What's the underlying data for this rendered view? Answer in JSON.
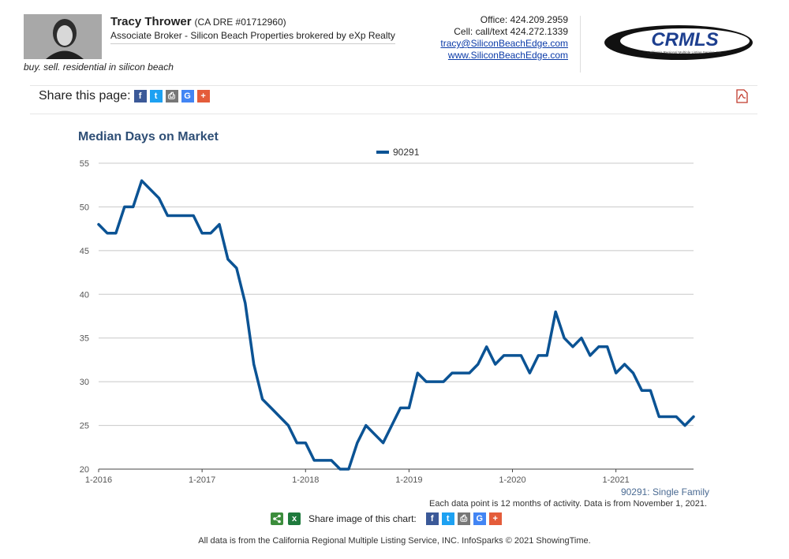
{
  "agent": {
    "name": "Tracy Thrower",
    "dre": "(CA DRE #01712960)",
    "title": "Associate Broker - Silicon Beach Properties brokered by eXp Realty",
    "tagline": "buy. sell. residential in silicon beach",
    "office": "Office: 424.209.2959",
    "cell": "Cell: call/text 424.272.1339",
    "email": "tracy@SiliconBeachEdge.com",
    "website": "www.SiliconBeachEdge.com"
  },
  "logo": {
    "text": "CRMLS",
    "subtext": "California Regional Multiple Listing Service, Inc."
  },
  "share_page": {
    "label": "Share this page:"
  },
  "share_icons": [
    {
      "name": "facebook-icon",
      "glyph": "f",
      "color": "#3b5998"
    },
    {
      "name": "twitter-icon",
      "glyph": "t",
      "color": "#1da1f2"
    },
    {
      "name": "print-icon",
      "glyph": "⎙",
      "color": "#777777"
    },
    {
      "name": "google-icon",
      "glyph": "G",
      "color": "#4285f4"
    },
    {
      "name": "plus-icon",
      "glyph": "+",
      "color": "#e45c3a"
    }
  ],
  "chart_data": {
    "type": "line",
    "title": "Median Days on Market",
    "xlabel": "",
    "ylabel": "",
    "ylim": [
      20,
      55
    ],
    "yticks": [
      20,
      25,
      30,
      35,
      40,
      45,
      50,
      55
    ],
    "xticks": [
      "1-2016",
      "1-2017",
      "1-2018",
      "1-2019",
      "1-2020",
      "1-2021"
    ],
    "x_start": "1-2016",
    "x_end": "10-2021",
    "grid": true,
    "legend_position": "top-center",
    "line_color": "#0b5394",
    "series": [
      {
        "name": "90291",
        "values": [
          48,
          47,
          47,
          50,
          50,
          53,
          52,
          51,
          49,
          49,
          49,
          49,
          47,
          47,
          48,
          44,
          43,
          39,
          32,
          28,
          27,
          26,
          25,
          23,
          23,
          21,
          21,
          21,
          20,
          20,
          23,
          25,
          24,
          23,
          25,
          27,
          27,
          31,
          30,
          30,
          30,
          31,
          31,
          31,
          32,
          34,
          32,
          33,
          33,
          33,
          31,
          33,
          33,
          38,
          35,
          34,
          35,
          33,
          34,
          34,
          31,
          32,
          31,
          29,
          29,
          26,
          26,
          26,
          25,
          26
        ]
      }
    ]
  },
  "chart_footer": {
    "series_note": "90291: Single Family",
    "data_note": "Each data point is 12 months of activity. Data is from November 1, 2021.",
    "share_label": "Share image of this chart:"
  },
  "footer": "All data is from the California Regional Multiple Listing Service, INC. InfoSparks © 2021 ShowingTime."
}
